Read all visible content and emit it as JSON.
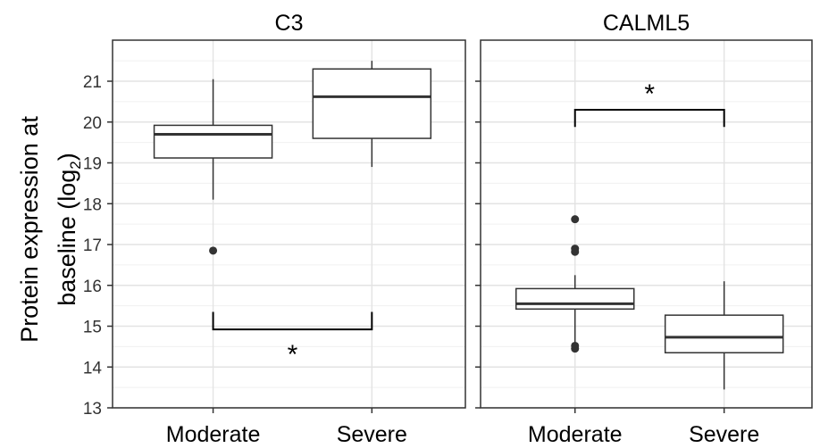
{
  "chart_data": {
    "type": "box",
    "ylabel_main": "Protein expression at",
    "ylabel_second": "baseline (log",
    "ylabel_sub": "2",
    "ylabel_close": ")",
    "ylim": [
      13,
      21.8
    ],
    "yticks": [
      13,
      14,
      15,
      16,
      17,
      18,
      19,
      20,
      21
    ],
    "categories": [
      "Moderate",
      "Severe"
    ],
    "grid": true,
    "panels": [
      {
        "title": "C3",
        "boxes": [
          {
            "category": "Moderate",
            "whisker_low": 18.1,
            "q1": 19.12,
            "median": 19.7,
            "q3": 19.92,
            "whisker_high": 21.05,
            "outliers": [
              16.85
            ]
          },
          {
            "category": "Severe",
            "whisker_low": 18.9,
            "q1": 19.6,
            "median": 20.62,
            "q3": 21.3,
            "whisker_high": 21.5,
            "outliers": []
          }
        ],
        "significance": {
          "label": "*",
          "bracket_y": 14.92,
          "tick_to": 15.35,
          "direction": "below"
        }
      },
      {
        "title": "CALML5",
        "boxes": [
          {
            "category": "Moderate",
            "whisker_low": 14.6,
            "q1": 15.42,
            "median": 15.55,
            "q3": 15.92,
            "whisker_high": 16.25,
            "outliers": [
              16.82,
              16.9,
              17.62,
              14.45,
              14.52
            ]
          },
          {
            "category": "Severe",
            "whisker_low": 13.45,
            "q1": 14.35,
            "median": 14.73,
            "q3": 15.27,
            "whisker_high": 16.1,
            "outliers": []
          }
        ],
        "significance": {
          "label": "*",
          "bracket_y": 20.3,
          "tick_to": 19.88,
          "direction": "above"
        }
      }
    ]
  }
}
